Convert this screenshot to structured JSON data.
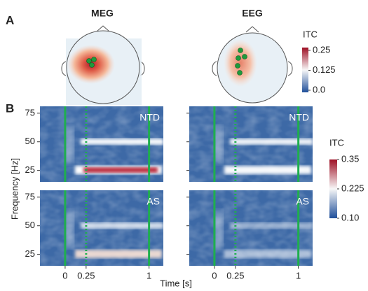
{
  "panel_a": {
    "label": "A",
    "meg_title": "MEG",
    "eeg_title": "EEG",
    "colorbar": {
      "title": "ITC",
      "lim": [
        0,
        0.25
      ],
      "ticks": [
        0.25,
        0.125,
        {
          "value": 0,
          "label": "0.0"
        }
      ]
    }
  },
  "panel_b": {
    "label": "B",
    "y_label": "Frequency [Hz]",
    "x_label": "Time [s]",
    "xlim": [
      -0.3,
      1.17
    ],
    "ylim": [
      15,
      81
    ],
    "xticks": [
      0,
      0.25,
      1
    ],
    "yticks": [
      25,
      50,
      75
    ],
    "subplots": [
      {
        "tag": "NTD"
      },
      {
        "tag": "NTD"
      },
      {
        "tag": "AS"
      },
      {
        "tag": "AS"
      }
    ],
    "colorbar": {
      "title": "ITC",
      "lim": [
        0.1,
        0.35
      ],
      "ticks": [
        0.35,
        0.225,
        {
          "value": 0.1,
          "label": "0.10"
        }
      ]
    }
  }
}
